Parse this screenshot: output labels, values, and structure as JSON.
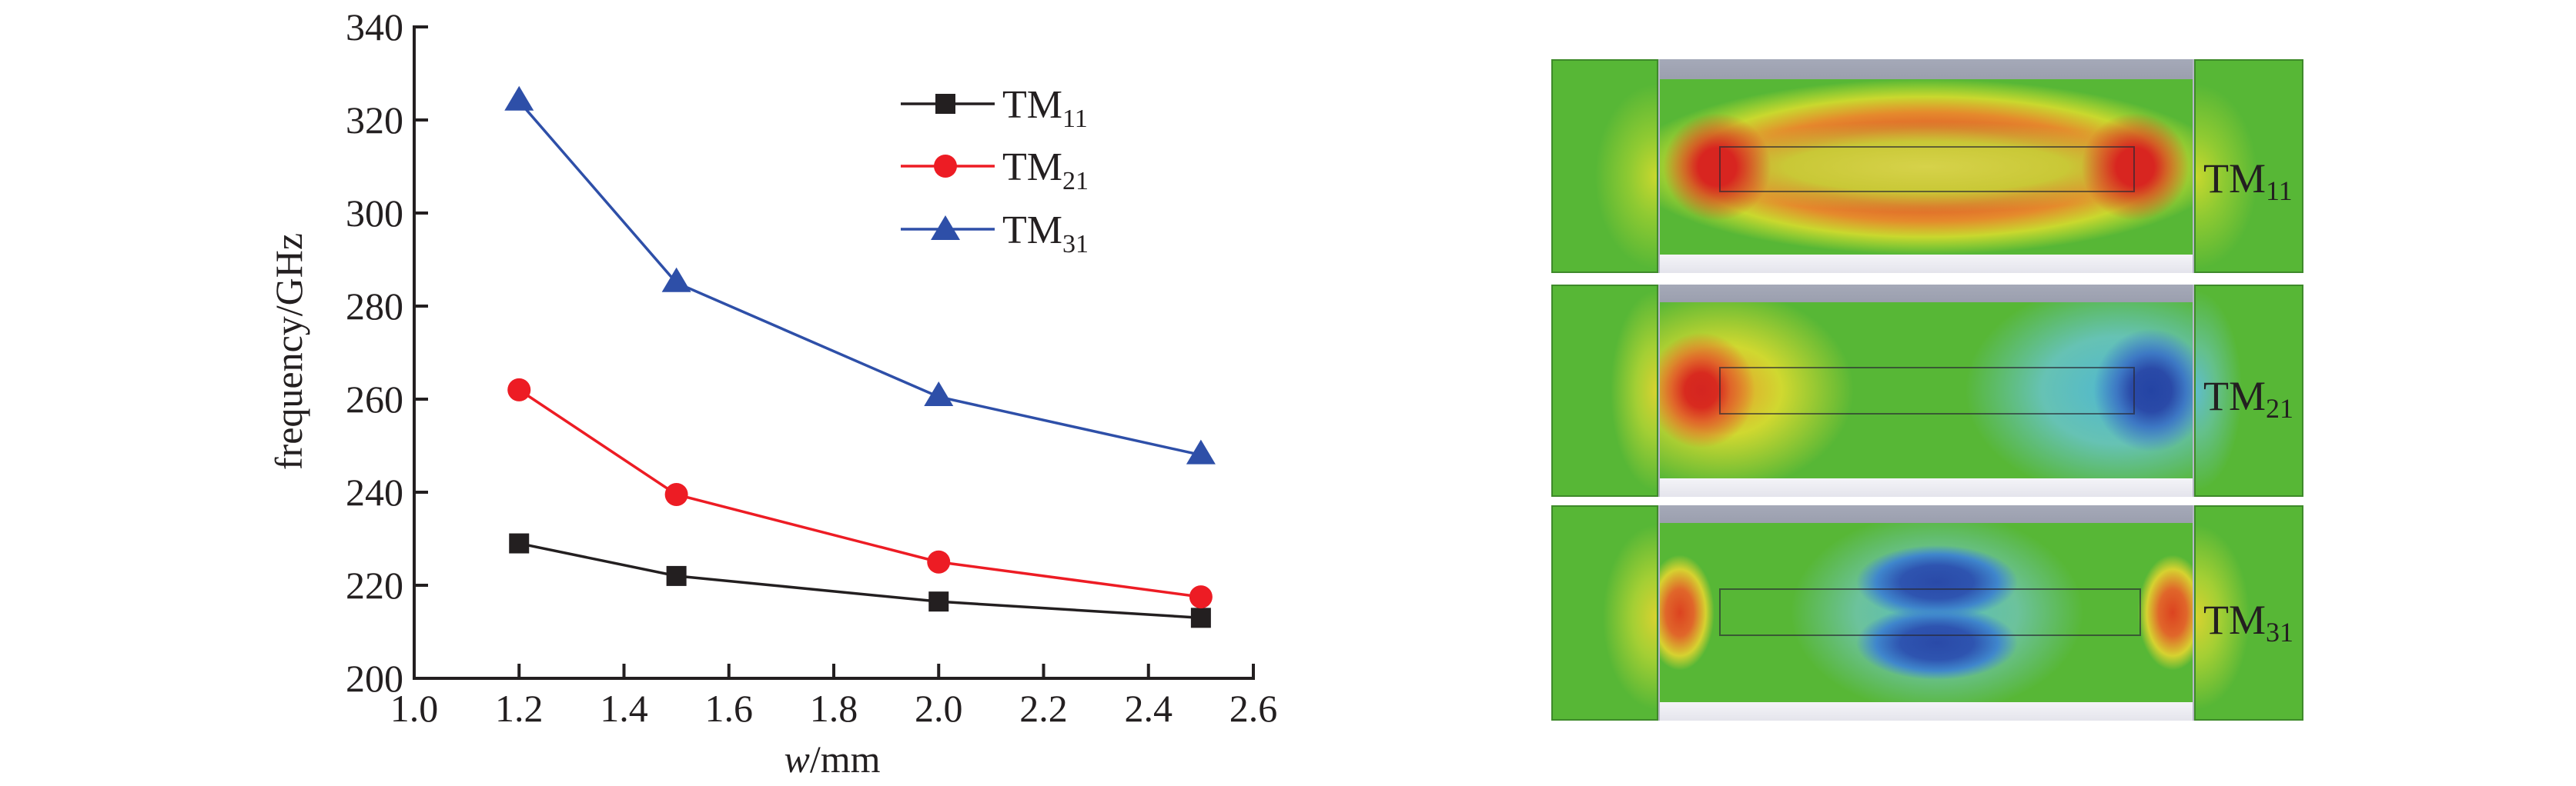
{
  "chart_data": {
    "type": "line",
    "title": "",
    "xlabel_italic": "w",
    "xlabel_rest": "/mm",
    "xlabel": "w/mm",
    "ylabel": "frequency/GHz",
    "xlim": [
      1.0,
      2.6
    ],
    "ylim": [
      200,
      340
    ],
    "xticks": [
      "1.0",
      "1.2",
      "1.4",
      "1.6",
      "1.8",
      "2.0",
      "2.2",
      "2.4",
      "2.6"
    ],
    "xtick_values": [
      1.0,
      1.2,
      1.4,
      1.6,
      1.8,
      2.0,
      2.2,
      2.4,
      2.6
    ],
    "yticks": [
      "200",
      "220",
      "240",
      "260",
      "280",
      "300",
      "320",
      "340"
    ],
    "ytick_values": [
      200,
      220,
      240,
      260,
      280,
      300,
      320,
      340
    ],
    "grid": false,
    "legend_position": "top-right",
    "x": [
      1.2,
      1.5,
      2.0,
      2.5
    ],
    "series": [
      {
        "name": "TM11",
        "label_main": "TM",
        "label_sub": "11",
        "marker": "square",
        "color": "#231f20",
        "values": [
          229,
          222,
          216.5,
          213
        ]
      },
      {
        "name": "TM21",
        "label_main": "TM",
        "label_sub": "21",
        "marker": "circle",
        "color": "#ed1c24",
        "values": [
          262,
          239.5,
          225,
          217.5
        ]
      },
      {
        "name": "TM31",
        "label_main": "TM",
        "label_sub": "31",
        "marker": "triangle",
        "color": "#2e4fa8",
        "values": [
          324,
          285,
          260.5,
          248
        ]
      }
    ]
  },
  "field_panels": [
    {
      "mode": "TM11",
      "label_main": "TM",
      "label_sub": "11",
      "description": "E-field distribution, red maxima at both ends of central strip, orange band around strip"
    },
    {
      "mode": "TM21",
      "label_main": "TM",
      "label_sub": "21",
      "description": "E-field distribution, red maximum at left end, blue minimum at right end"
    },
    {
      "mode": "TM31",
      "label_main": "TM",
      "label_sub": "31",
      "description": "E-field distribution, red maxima at both ends, blue lobes at center"
    }
  ],
  "colors": {
    "field_green": "#57b736",
    "field_red": "#d9261e",
    "field_orange": "#e0662a",
    "field_yellow": "#c9d82e",
    "field_blue": "#2a4aa8",
    "field_cyan": "#4fb8d0",
    "band_gray": "#a2a6b5"
  }
}
